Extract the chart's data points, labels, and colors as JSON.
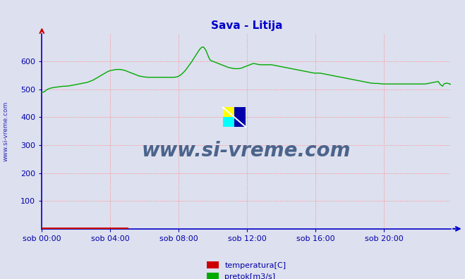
{
  "title": "Sava - Litija",
  "title_color": "#0000cc",
  "title_fontsize": 11,
  "bg_color": "#dde0ee",
  "plot_bg_color": "#dde0ee",
  "xlim": [
    0,
    287
  ],
  "ylim": [
    0,
    700
  ],
  "yticks": [
    100,
    200,
    300,
    400,
    500,
    600
  ],
  "xtick_labels": [
    "sob 00:00",
    "sob 04:00",
    "sob 08:00",
    "sob 12:00",
    "sob 16:00",
    "sob 20:00"
  ],
  "xtick_positions": [
    0,
    48,
    96,
    144,
    192,
    240
  ],
  "grid_color": "#ff8888",
  "grid_style": ":",
  "axis_color": "#0000cc",
  "tick_color": "#0000aa",
  "line_color_pretok": "#00aa00",
  "line_color_temp": "#cc0000",
  "watermark_text": "www.si-vreme.com",
  "watermark_color": "#1a3a6b",
  "left_label": "www.si-vreme.com",
  "legend_items": [
    {
      "label": "temperatura[C]",
      "color": "#cc0000"
    },
    {
      "label": "pretok[m3/s]",
      "color": "#00aa00"
    }
  ],
  "pretok_values": [
    488,
    490,
    492,
    497,
    500,
    502,
    504,
    505,
    506,
    507,
    508,
    508,
    509,
    510,
    510,
    511,
    511,
    511,
    512,
    512,
    513,
    514,
    515,
    516,
    517,
    518,
    519,
    520,
    521,
    522,
    523,
    524,
    525,
    527,
    529,
    531,
    533,
    536,
    539,
    542,
    545,
    548,
    551,
    554,
    557,
    560,
    563,
    565,
    567,
    568,
    569,
    570,
    571,
    571,
    571,
    571,
    570,
    569,
    568,
    566,
    564,
    562,
    560,
    558,
    556,
    554,
    552,
    550,
    548,
    547,
    546,
    545,
    544,
    544,
    543,
    543,
    543,
    543,
    543,
    543,
    543,
    543,
    543,
    543,
    543,
    543,
    543,
    543,
    543,
    543,
    543,
    543,
    543,
    543,
    544,
    545,
    547,
    550,
    554,
    559,
    564,
    570,
    577,
    584,
    591,
    598,
    606,
    614,
    622,
    630,
    638,
    645,
    650,
    652,
    648,
    640,
    628,
    615,
    605,
    602,
    600,
    598,
    596,
    594,
    592,
    590,
    588,
    586,
    584,
    582,
    580,
    578,
    577,
    576,
    575,
    574,
    574,
    574,
    574,
    575,
    576,
    578,
    580,
    582,
    584,
    586,
    588,
    590,
    592,
    592,
    591,
    590,
    589,
    588,
    588,
    588,
    588,
    588,
    588,
    588,
    588,
    588,
    587,
    586,
    585,
    584,
    583,
    582,
    581,
    580,
    579,
    578,
    577,
    576,
    575,
    574,
    573,
    572,
    571,
    570,
    569,
    568,
    567,
    566,
    565,
    564,
    563,
    562,
    561,
    560,
    559,
    558,
    558,
    558,
    558,
    558,
    557,
    556,
    555,
    554,
    553,
    552,
    551,
    550,
    549,
    548,
    547,
    546,
    545,
    544,
    543,
    542,
    541,
    540,
    539,
    538,
    537,
    536,
    535,
    534,
    533,
    532,
    531,
    530,
    529,
    528,
    527,
    526,
    525,
    524,
    523,
    522,
    522,
    521,
    521,
    521,
    521,
    520,
    520,
    519,
    519,
    519,
    519,
    519,
    519,
    519,
    519,
    519,
    519,
    519,
    519,
    519,
    519,
    519,
    519,
    519,
    519,
    519,
    519,
    519,
    519,
    519,
    519,
    519,
    519,
    519,
    519,
    519,
    519,
    519,
    520,
    521,
    522,
    523,
    524,
    525,
    526,
    527,
    528,
    520,
    515,
    511,
    519,
    521,
    522,
    521,
    519,
    518
  ]
}
